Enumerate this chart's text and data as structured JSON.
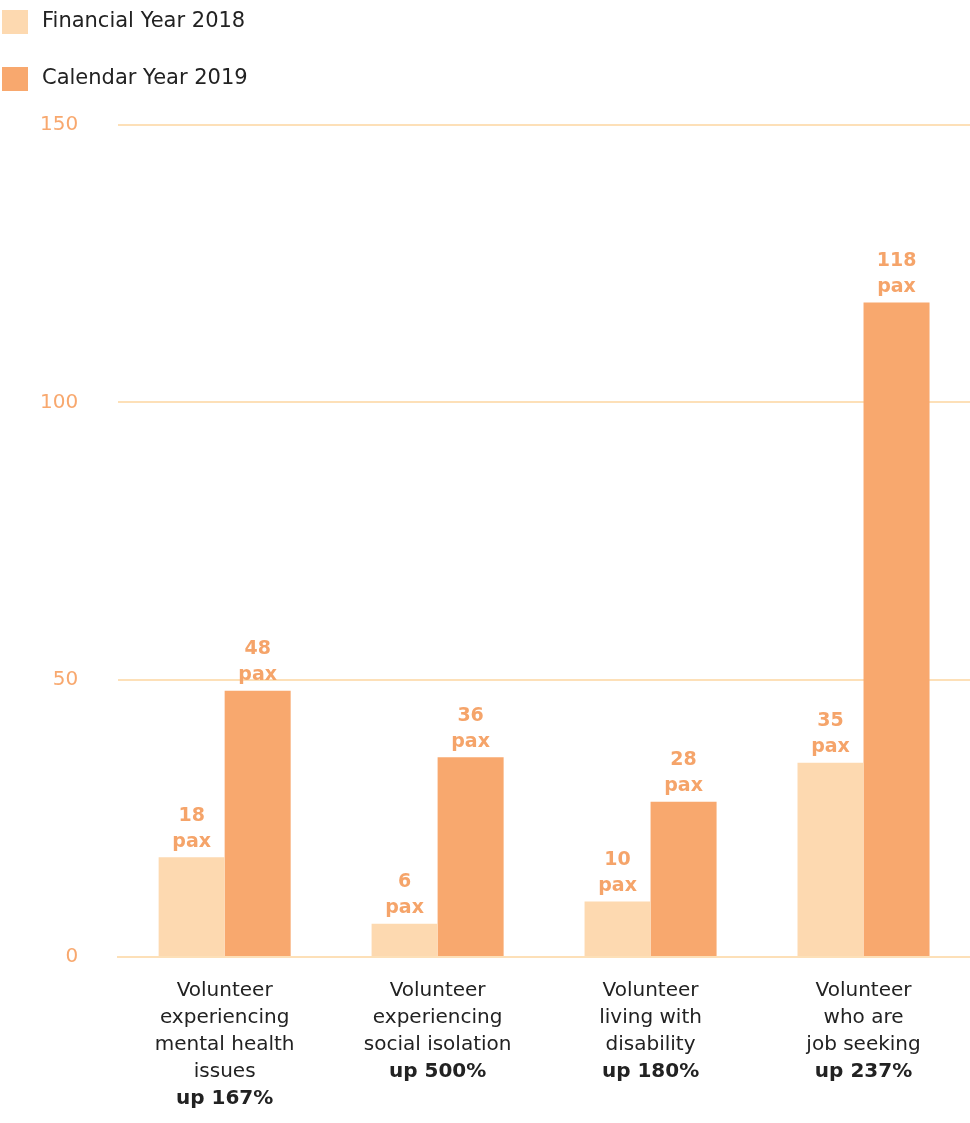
{
  "chart_data": {
    "type": "bar",
    "categories": [
      "Volunteer\nexperiencing\nmental health\nissues\nup 167%",
      "Volunteer\nexperiencing\nsocial isolation\nup 500%",
      "Volunteer\nliving with\ndisability\nup 180%",
      "Volunteer\nwho are\njob seeking\nup 237%"
    ],
    "series": [
      {
        "name": "Financial Year 2018",
        "color": "#fdd9b0",
        "values": [
          18,
          6,
          10,
          35
        ],
        "value_labels": [
          "18 pax",
          "6 pax",
          "10 pax",
          "35 pax"
        ]
      },
      {
        "name": "Calendar Year 2019",
        "color": "#f8a86e",
        "values": [
          48,
          36,
          28,
          118
        ],
        "value_labels": [
          "48 pax",
          "36 pax",
          "28 pax",
          "118 pax"
        ]
      }
    ],
    "ylim": [
      0,
      150
    ],
    "yticks": [
      0,
      50,
      100,
      150
    ],
    "grid": "y",
    "legend": "top left"
  }
}
